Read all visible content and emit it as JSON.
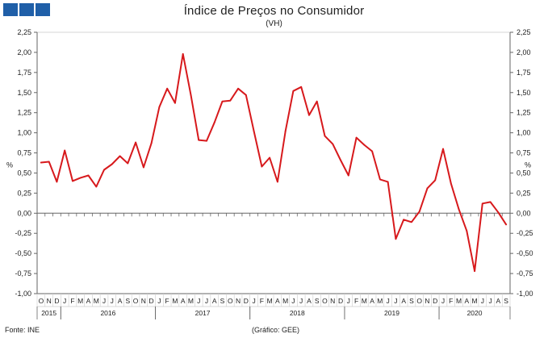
{
  "header": {
    "title": "Índice de Preços no Consumidor",
    "subtitle": "(VH)"
  },
  "footer": {
    "source": "Fonte: INE",
    "credit": "(Gráfico: GEE)"
  },
  "colors": {
    "line": "#d7191c",
    "logo": "#1f5fa8",
    "axis": "#666666",
    "frame": "#cccccc"
  },
  "chart_data": {
    "type": "line",
    "title": "Índice de Preços no Consumidor",
    "subtitle": "(VH)",
    "ylabel": "%",
    "ylabel_right": "%",
    "ylim": [
      -1.0,
      2.25
    ],
    "yticks": [
      -1.0,
      -0.75,
      -0.5,
      -0.25,
      0.0,
      0.25,
      0.5,
      0.75,
      1.0,
      1.25,
      1.5,
      1.75,
      2.0,
      2.25
    ],
    "ytick_labels": [
      "-1,00",
      "-0,75",
      "-0,50",
      "-0,25",
      "0,00",
      "0,25",
      "0,50",
      "0,75",
      "1,00",
      "1,25",
      "1,50",
      "1,75",
      "2,00",
      "2,25"
    ],
    "grid": false,
    "legend": "none",
    "month_labels": [
      "O",
      "N",
      "D",
      "J",
      "F",
      "M",
      "A",
      "M",
      "J",
      "J",
      "A",
      "S",
      "O",
      "N",
      "D",
      "J",
      "F",
      "M",
      "A",
      "M",
      "J",
      "J",
      "A",
      "S",
      "O",
      "N",
      "D",
      "J",
      "F",
      "M",
      "A",
      "M",
      "J",
      "J",
      "A",
      "S",
      "O",
      "N",
      "D",
      "J",
      "F",
      "M",
      "A",
      "M",
      "J",
      "J",
      "A",
      "S",
      "O",
      "N",
      "D",
      "J",
      "F",
      "M",
      "A",
      "M",
      "J",
      "J",
      "A",
      "S"
    ],
    "year_labels": [
      {
        "label": "2015",
        "start": 0,
        "end": 2
      },
      {
        "label": "2016",
        "start": 3,
        "end": 14
      },
      {
        "label": "2017",
        "start": 15,
        "end": 26
      },
      {
        "label": "2018",
        "start": 27,
        "end": 38
      },
      {
        "label": "2019",
        "start": 39,
        "end": 50
      },
      {
        "label": "2020",
        "start": 51,
        "end": 59
      }
    ],
    "series": [
      {
        "values": [
          0.63,
          0.64,
          0.39,
          0.78,
          0.4,
          0.44,
          0.47,
          0.33,
          0.54,
          0.61,
          0.71,
          0.62,
          0.88,
          0.57,
          0.87,
          1.32,
          1.55,
          1.37,
          1.98,
          1.47,
          0.91,
          0.9,
          1.13,
          1.39,
          1.4,
          1.55,
          1.47,
          1.02,
          0.58,
          0.69,
          0.39,
          1.02,
          1.52,
          1.57,
          1.22,
          1.39,
          0.96,
          0.86,
          0.66,
          0.47,
          0.94,
          0.85,
          0.77,
          0.42,
          0.39,
          -0.32,
          -0.08,
          -0.11,
          0.02,
          0.31,
          0.41,
          0.8,
          0.37,
          0.05,
          -0.22,
          -0.72,
          0.12,
          0.14,
          0.01,
          -0.14
        ]
      }
    ]
  }
}
